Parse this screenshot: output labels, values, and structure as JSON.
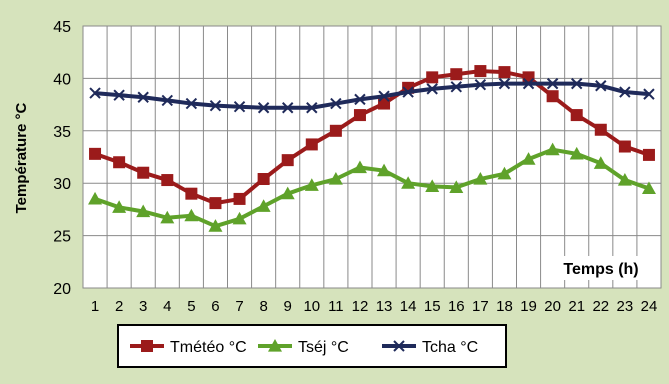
{
  "chart_data": {
    "type": "line",
    "title": "",
    "xlabel": "Temps (h)",
    "ylabel": "Température °C",
    "x": [
      1,
      2,
      3,
      4,
      5,
      6,
      7,
      8,
      9,
      10,
      11,
      12,
      13,
      14,
      15,
      16,
      17,
      18,
      19,
      20,
      21,
      22,
      23,
      24
    ],
    "ylim": [
      20,
      45
    ],
    "yticks": [
      20,
      25,
      30,
      35,
      40,
      45
    ],
    "grid": true,
    "legend_position": "bottom",
    "series": [
      {
        "name": "Tmétéo °C",
        "color": "#9b1b1b",
        "marker": "square",
        "values": [
          32.8,
          32.0,
          31.0,
          30.3,
          29.0,
          28.1,
          28.5,
          30.4,
          32.2,
          33.7,
          35.0,
          36.5,
          37.6,
          39.1,
          40.1,
          40.4,
          40.7,
          40.6,
          40.1,
          38.3,
          36.5,
          35.1,
          33.5,
          32.7
        ]
      },
      {
        "name": "Tséj °C",
        "color": "#5fa22a",
        "marker": "triangle",
        "values": [
          28.5,
          27.7,
          27.3,
          26.7,
          26.9,
          25.9,
          26.6,
          27.8,
          29.0,
          29.8,
          30.4,
          31.5,
          31.2,
          30.0,
          29.7,
          29.6,
          30.4,
          30.9,
          32.3,
          33.2,
          32.8,
          31.9,
          30.3,
          29.5
        ]
      },
      {
        "name": "Tcha °C",
        "color": "#1f2a5a",
        "marker": "x",
        "values": [
          38.6,
          38.4,
          38.2,
          37.9,
          37.6,
          37.4,
          37.3,
          37.2,
          37.2,
          37.2,
          37.6,
          38.0,
          38.3,
          38.7,
          39.0,
          39.2,
          39.4,
          39.5,
          39.5,
          39.5,
          39.5,
          39.3,
          38.7,
          38.5
        ]
      }
    ]
  }
}
